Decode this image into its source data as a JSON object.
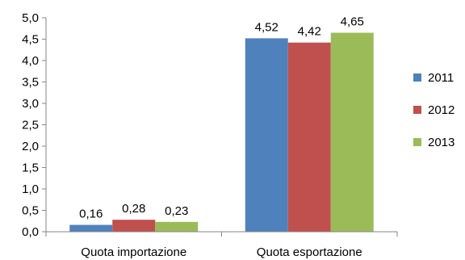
{
  "chart_data": {
    "type": "bar",
    "categories": [
      "Quota importazione",
      "Quota esportazione"
    ],
    "series": [
      {
        "name": "2011",
        "values": [
          0.16,
          4.52
        ],
        "labels": [
          "0,16",
          "4,52"
        ],
        "color": "#4F81BD"
      },
      {
        "name": "2012",
        "values": [
          0.28,
          4.42
        ],
        "labels": [
          "0,28",
          "4,42"
        ],
        "color": "#C0504D"
      },
      {
        "name": "2013",
        "values": [
          0.23,
          4.65
        ],
        "labels": [
          "0,23",
          "4,65"
        ],
        "color": "#9BBB59"
      }
    ],
    "yticks": [
      0,
      0.5,
      1,
      1.5,
      2,
      2.5,
      3,
      3.5,
      4,
      4.5,
      5
    ],
    "ytick_labels": [
      "0,0",
      "0,5",
      "1,0",
      "1,5",
      "2,0",
      "2,5",
      "3,0",
      "3,5",
      "4,0",
      "4,5",
      "5,0"
    ],
    "ylim": [
      0,
      5
    ],
    "title": "",
    "xlabel": "",
    "ylabel": "",
    "grid": false,
    "legend_position": "right"
  }
}
